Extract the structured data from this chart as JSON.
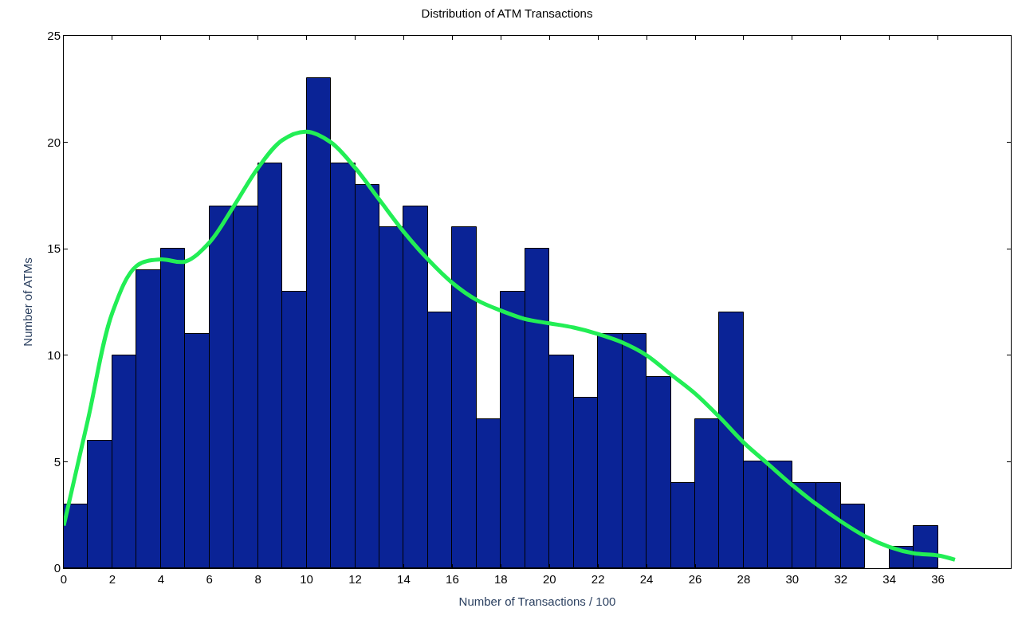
{
  "chart_data": {
    "type": "histogram",
    "title": "Distribution of ATM Transactions",
    "xlabel": "Number of Transactions / 100",
    "ylabel": "Number of ATMs",
    "bins": [
      0,
      1,
      2,
      3,
      4,
      5,
      6,
      7,
      8,
      9,
      10,
      11,
      12,
      13,
      14,
      15,
      16,
      17,
      18,
      19,
      20,
      21,
      22,
      23,
      24,
      25,
      26,
      27,
      28,
      29,
      30,
      31,
      32,
      33,
      34,
      35,
      36
    ],
    "values": [
      3,
      6,
      10,
      14,
      15,
      11,
      17,
      17,
      19,
      13,
      23,
      19,
      18,
      16,
      17,
      12,
      16,
      7,
      13,
      15,
      10,
      8,
      11,
      11,
      9,
      4,
      7,
      12,
      5,
      5,
      4,
      4,
      3,
      0,
      1,
      2
    ],
    "color": "#0a2396",
    "series": [
      {
        "type": "line",
        "color": "#22ee55",
        "x": [
          0,
          1,
          2,
          3,
          4,
          5,
          6,
          7,
          8,
          9,
          10,
          11,
          12,
          13,
          14,
          15,
          16,
          17,
          18,
          19,
          20,
          21,
          22,
          23,
          24,
          25,
          26,
          27,
          28,
          29,
          30,
          31,
          32,
          33,
          34,
          35,
          36,
          36.7
        ],
        "values": [
          2,
          7,
          12,
          14.2,
          14.5,
          14.4,
          15.3,
          17,
          18.8,
          20.1,
          20.5,
          20,
          18.8,
          17.3,
          15.8,
          14.5,
          13.4,
          12.6,
          12.1,
          11.7,
          11.5,
          11.3,
          11,
          10.6,
          10,
          9.1,
          8.2,
          7.1,
          5.9,
          4.9,
          3.9,
          3,
          2.2,
          1.5,
          1,
          0.7,
          0.6,
          0.4
        ]
      }
    ],
    "xlim": [
      0,
      39
    ],
    "xticks": [
      0,
      2,
      4,
      6,
      8,
      10,
      12,
      14,
      16,
      18,
      20,
      22,
      24,
      26,
      28,
      30,
      32,
      34,
      36
    ],
    "ylim": [
      0,
      25
    ],
    "yticks": [
      0,
      5,
      10,
      15,
      20,
      25
    ]
  }
}
